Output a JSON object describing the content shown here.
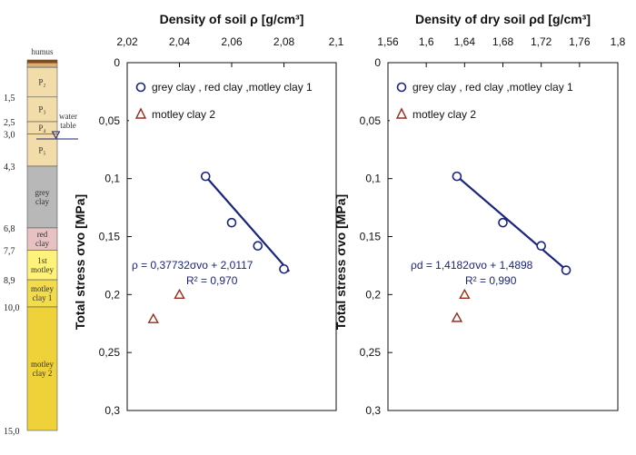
{
  "column": {
    "top_label": "humus",
    "water_label_1": "water",
    "water_label_2": "table",
    "layers": [
      {
        "top": 0.0,
        "bottom": 0.12,
        "label": "",
        "fill": "#8a4a12"
      },
      {
        "top": 0.12,
        "bottom": 0.3,
        "label": "",
        "fill": "#d8b07a"
      },
      {
        "top": 0.3,
        "bottom": 1.5,
        "label": "P₂",
        "fill": "#f1dcaa"
      },
      {
        "top": 1.5,
        "bottom": 2.5,
        "label": "P₃",
        "fill": "#f1dcaa"
      },
      {
        "top": 2.5,
        "bottom": 3.0,
        "label": "P₄",
        "fill": "#f1dcaa"
      },
      {
        "top": 3.0,
        "bottom": 4.3,
        "label": "P₅",
        "fill": "#f1dcaa"
      },
      {
        "top": 4.3,
        "bottom": 6.8,
        "label": "grey clay",
        "fill": "#b8b8b8"
      },
      {
        "top": 6.8,
        "bottom": 7.7,
        "label": "red clay",
        "fill": "#e8c2c2"
      },
      {
        "top": 7.7,
        "bottom": 8.9,
        "label": "1st motley",
        "fill": "#fff27a"
      },
      {
        "top": 8.9,
        "bottom": 10.0,
        "label": "motley clay 1",
        "fill": "#f3dc4a"
      },
      {
        "top": 10.0,
        "bottom": 15.0,
        "label": "motley clay 2",
        "fill": "#efd23a"
      }
    ],
    "depth_labels": [
      "1,5",
      "2,5",
      "3,0",
      "4,3",
      "6,8",
      "7,7",
      "8,9",
      "10,0",
      "15,0"
    ],
    "water_depth": 3.2
  },
  "chart_data": [
    {
      "type": "scatter",
      "title": "Density of soil ρ [g/cm³]",
      "ylabel": "Total stress σvo [MPa]",
      "xlim": [
        2.02,
        2.1
      ],
      "ylim": [
        0,
        0.3
      ],
      "x_ticks": [
        "2,02",
        "2,04",
        "2,06",
        "2,08",
        "2,1"
      ],
      "y_ticks": [
        "0",
        "0,05",
        "0,1",
        "0,15",
        "0,2",
        "0,25",
        "0,3"
      ],
      "legend_position": "top-right",
      "series": [
        {
          "name": "grey clay , red clay ,motley clay 1",
          "marker": "circle",
          "color": "#1a237e",
          "points": [
            [
              2.05,
              0.098
            ],
            [
              2.06,
              0.138
            ],
            [
              2.07,
              0.158
            ],
            [
              2.08,
              0.178
            ]
          ]
        },
        {
          "name": "motley clay 2",
          "marker": "triangle",
          "color": "#9b2a1a",
          "points": [
            [
              2.04,
              0.2
            ],
            [
              2.03,
              0.221
            ]
          ]
        }
      ],
      "fit": {
        "y0": 0.098,
        "y1": 0.18
      },
      "equation": "ρ = 0,37732σvo + 2,0117",
      "r2": "R² = 0,970"
    },
    {
      "type": "scatter",
      "title": "Density of dry soil ρd [g/cm³]",
      "ylabel": "Total stress σvo [MPa]",
      "xlim": [
        1.56,
        1.8
      ],
      "ylim": [
        0,
        0.3
      ],
      "x_ticks": [
        "1,56",
        "1,6",
        "1,64",
        "1,68",
        "1,72",
        "1,76",
        "1,8"
      ],
      "y_ticks": [
        "0",
        "0,05",
        "0,1",
        "0,15",
        "0,2",
        "0,25",
        "0,3"
      ],
      "legend_position": "top-right",
      "series": [
        {
          "name": "grey clay , red clay ,motley clay 1",
          "marker": "circle",
          "color": "#1a237e",
          "points": [
            [
              1.632,
              0.098
            ],
            [
              1.68,
              0.138
            ],
            [
              1.72,
              0.158
            ],
            [
              1.746,
              0.179
            ]
          ]
        },
        {
          "name": "motley clay 2",
          "marker": "triangle",
          "color": "#9b2a1a",
          "points": [
            [
              1.64,
              0.2
            ],
            [
              1.632,
              0.22
            ]
          ]
        }
      ],
      "fit": {
        "y0": 0.098,
        "y1": 0.18
      },
      "equation": "ρd = 1,4182σvo + 1,4898",
      "r2": "R² = 0,990"
    }
  ]
}
